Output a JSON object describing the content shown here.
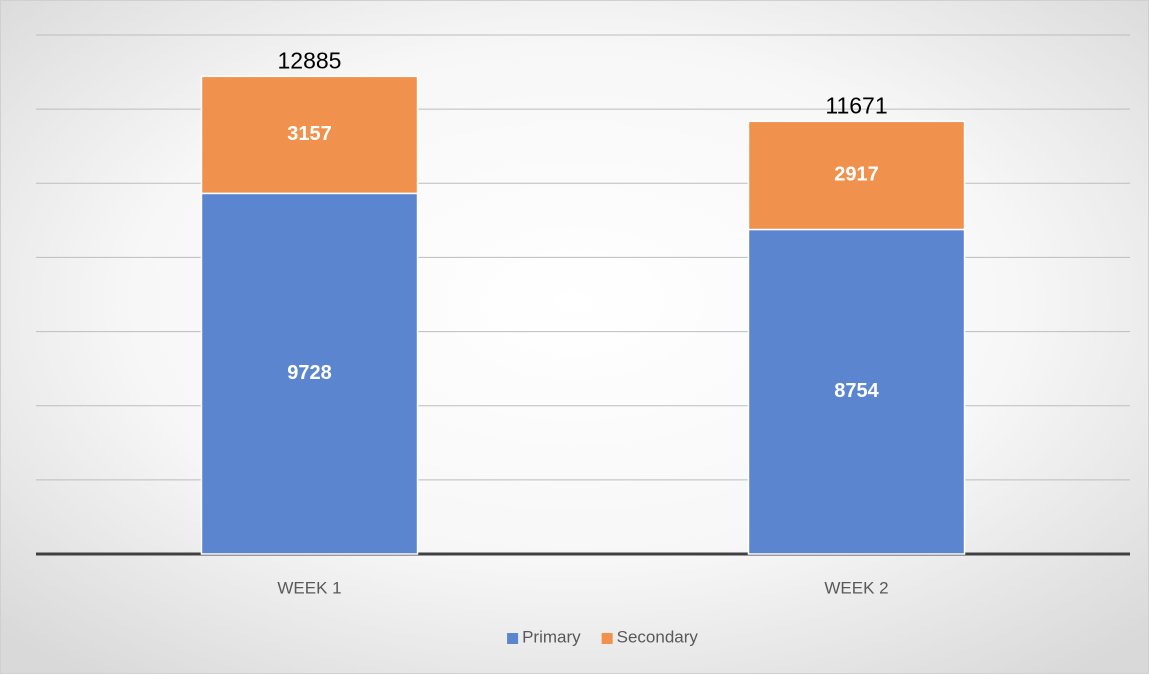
{
  "chart_data": {
    "type": "stacked_bar",
    "categories": [
      "WEEK 1",
      "WEEK 2"
    ],
    "series": [
      {
        "name": "Primary",
        "color": "#5b86cf",
        "values": [
          9728,
          8754
        ]
      },
      {
        "name": "Secondary",
        "color": "#f0914e",
        "values": [
          3157,
          2917
        ]
      }
    ],
    "totals": [
      12885,
      11671
    ],
    "ylim": [
      0,
      14000
    ],
    "yticks": [
      0,
      2000,
      4000,
      6000,
      8000,
      10000,
      12000,
      14000
    ],
    "grid": true,
    "legend": "bottom"
  }
}
